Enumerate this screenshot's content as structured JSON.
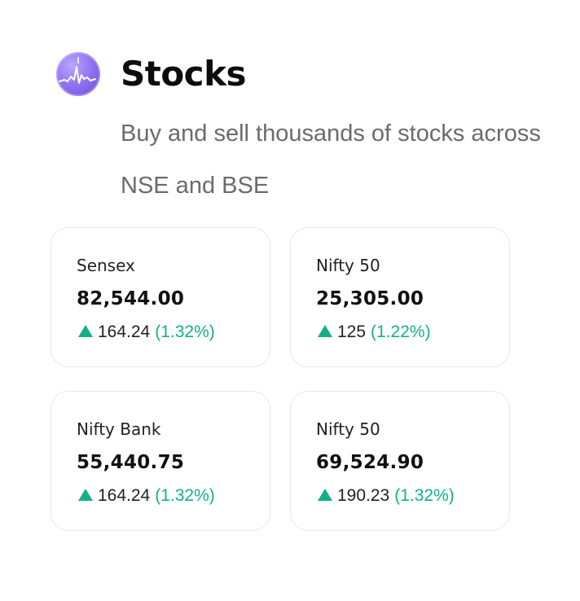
{
  "header": {
    "logo_icon": "stock-chart-icon",
    "title": "Stocks",
    "subtitle": "Buy and sell thousands of stocks across NSE and BSE"
  },
  "colors": {
    "positive": "#12b08a",
    "logo": "#8a6cf0"
  },
  "indices": [
    {
      "name": "Sensex",
      "value": "82,544.00",
      "change": "164.24",
      "change_pct": "(1.32%)",
      "direction": "up"
    },
    {
      "name": "Nifty 50",
      "value": "25,305.00",
      "change": "125",
      "change_pct": "(1.22%)",
      "direction": "up"
    },
    {
      "name": "Nifty Bank",
      "value": "55,440.75",
      "change": "164.24",
      "change_pct": "(1.32%)",
      "direction": "up"
    },
    {
      "name": "Nifty 50",
      "value": "69,524.90",
      "change": "190.23",
      "change_pct": "(1.32%)",
      "direction": "up"
    }
  ]
}
